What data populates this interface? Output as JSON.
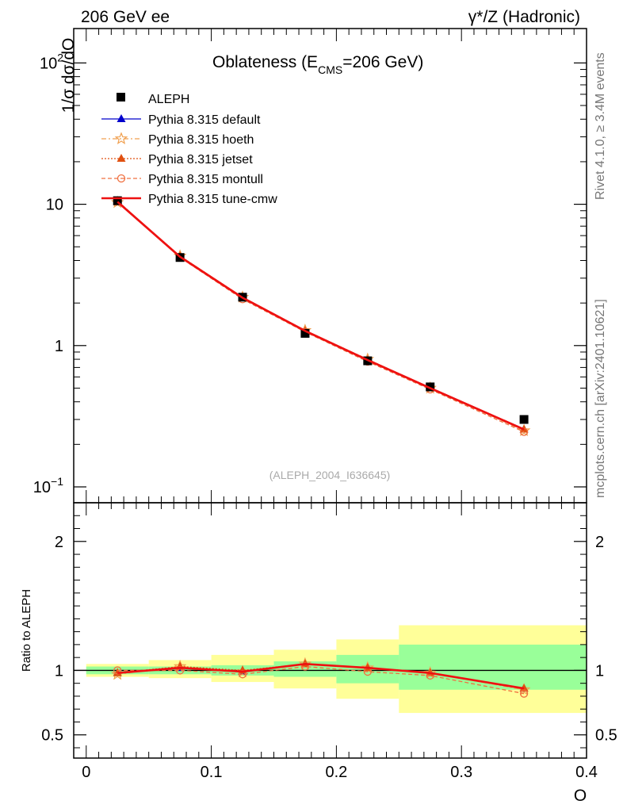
{
  "header": {
    "left": "206 GeV ee",
    "right": "γ*/Z (Hadronic)"
  },
  "side_text": {
    "rivet": "Rivet 4.1.0, ≥ 3.4M events",
    "site": "mcplots.cern.ch [arXiv:2401.10621]"
  },
  "chart_data": [
    {
      "type": "line",
      "panel": "main",
      "title_prefix": "Oblateness (E",
      "title_sub": "CMS",
      "title_suffix": "=206 GeV)",
      "ylabel": "1/σ  dσ/dO",
      "yscale": "log",
      "ylim": [
        0.1,
        150
      ],
      "xlim": [
        -0.01,
        0.4
      ],
      "y_ticks": [
        {
          "value": 0.1,
          "base": "10",
          "exp": "−1"
        },
        {
          "value": 1,
          "base": "1",
          "exp": ""
        },
        {
          "value": 10,
          "base": "10",
          "exp": ""
        },
        {
          "value": 100,
          "base": "10",
          "exp": "2"
        }
      ],
      "watermark": "(ALEPH_2004_I636645)",
      "x": [
        0.025,
        0.075,
        0.125,
        0.175,
        0.225,
        0.275,
        0.35
      ],
      "data": {
        "name": "ALEPH",
        "values": [
          10.6,
          4.2,
          2.2,
          1.22,
          0.78,
          0.51,
          0.3
        ]
      },
      "series": [
        {
          "name": "Pythia 8.315 default",
          "color": "#0000cc",
          "dash": "",
          "marker": "triangle",
          "values": [
            10.4,
            4.25,
            2.18,
            1.27,
            0.79,
            0.5,
            0.255
          ]
        },
        {
          "name": "Pythia 8.315 hoeth",
          "color": "#f0a050",
          "dash": "6,3,2,3",
          "marker": "star",
          "values": [
            10.3,
            4.3,
            2.2,
            1.28,
            0.8,
            0.5,
            0.25
          ]
        },
        {
          "name": "Pythia 8.315 jetset",
          "color": "#e05010",
          "dash": "2,2",
          "marker": "triangle-filled",
          "values": [
            10.35,
            4.3,
            2.2,
            1.27,
            0.79,
            0.5,
            0.255
          ]
        },
        {
          "name": "Pythia 8.315 montull",
          "color": "#f07040",
          "dash": "5,3",
          "marker": "circle-open",
          "values": [
            10.6,
            4.2,
            2.13,
            1.25,
            0.77,
            0.49,
            0.245
          ]
        },
        {
          "name": "Pythia 8.315 tune-cmw",
          "color": "#ee1111",
          "dash": "",
          "marker": "none",
          "values": [
            10.4,
            4.25,
            2.18,
            1.27,
            0.79,
            0.5,
            0.255
          ]
        }
      ]
    },
    {
      "type": "line",
      "panel": "ratio",
      "ylabel": "Ratio to ALEPH",
      "xlabel": "O",
      "yscale": "linear",
      "ylim": [
        0.32,
        2.3
      ],
      "xlim": [
        -0.01,
        0.4
      ],
      "x_ticks": [
        "0",
        "0.1",
        "0.2",
        "0.3",
        "0.4"
      ],
      "x_tick_values": [
        0,
        0.1,
        0.2,
        0.3,
        0.4
      ],
      "y_ticks": [
        "0.5",
        "1",
        "2"
      ],
      "y_tick_values": [
        0.5,
        1,
        2
      ],
      "bins": [
        {
          "lo": 0.0,
          "hi": 0.05,
          "green": [
            0.97,
            1.03
          ],
          "yellow": [
            0.95,
            1.05
          ]
        },
        {
          "lo": 0.05,
          "hi": 0.1,
          "green": [
            0.97,
            1.03
          ],
          "yellow": [
            0.94,
            1.08
          ]
        },
        {
          "lo": 0.1,
          "hi": 0.15,
          "green": [
            0.96,
            1.04
          ],
          "yellow": [
            0.91,
            1.12
          ]
        },
        {
          "lo": 0.15,
          "hi": 0.2,
          "green": [
            0.95,
            1.07
          ],
          "yellow": [
            0.86,
            1.16
          ]
        },
        {
          "lo": 0.2,
          "hi": 0.25,
          "green": [
            0.9,
            1.12
          ],
          "yellow": [
            0.78,
            1.24
          ]
        },
        {
          "lo": 0.25,
          "hi": 0.4,
          "green": [
            0.85,
            1.2
          ],
          "yellow": [
            0.67,
            1.35
          ]
        }
      ],
      "x": [
        0.025,
        0.075,
        0.125,
        0.175,
        0.225,
        0.275,
        0.35
      ],
      "series": [
        {
          "name": "Pythia 8.315 default",
          "values": [
            0.98,
            1.02,
            0.99,
            1.05,
            1.02,
            0.98,
            0.86
          ]
        },
        {
          "name": "Pythia 8.315 hoeth",
          "values": [
            0.97,
            1.03,
            0.99,
            1.05,
            1.02,
            0.98,
            0.85
          ]
        },
        {
          "name": "Pythia 8.315 jetset",
          "values": [
            0.98,
            1.03,
            1.0,
            1.05,
            1.02,
            0.98,
            0.86
          ]
        },
        {
          "name": "Pythia 8.315 montull",
          "values": [
            1.0,
            1.0,
            0.97,
            1.03,
            0.99,
            0.96,
            0.82
          ]
        },
        {
          "name": "Pythia 8.315 tune-cmw",
          "values": [
            0.98,
            1.02,
            0.99,
            1.05,
            1.02,
            0.98,
            0.86
          ]
        }
      ]
    }
  ]
}
